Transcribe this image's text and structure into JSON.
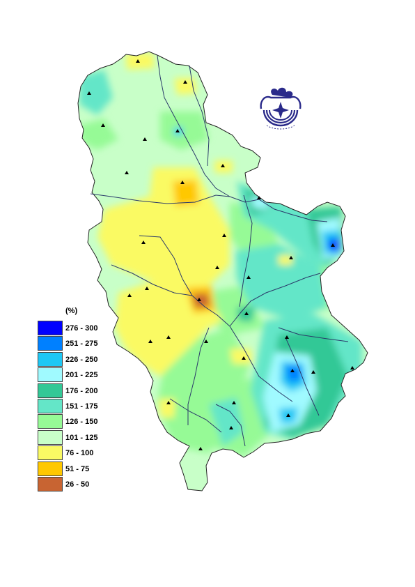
{
  "legend": {
    "title": "(%)",
    "classes": [
      {
        "label": "276 - 300",
        "color": "#0000ff"
      },
      {
        "label": "251 - 275",
        "color": "#0080ff"
      },
      {
        "label": "226 - 250",
        "color": "#1ec8f5"
      },
      {
        "label": "201 - 225",
        "color": "#a0faff"
      },
      {
        "label": "176 - 200",
        "color": "#32c896"
      },
      {
        "label": "151 - 175",
        "color": "#64e6c8"
      },
      {
        "label": "126 - 150",
        "color": "#96fa96"
      },
      {
        "label": "101 - 125",
        "color": "#c8ffc8"
      },
      {
        "label": "76 - 100",
        "color": "#fafa64"
      },
      {
        "label": "51 - 75",
        "color": "#ffc800"
      },
      {
        "label": "26 - 50",
        "color": "#c86432"
      }
    ]
  },
  "colors": {
    "border": "#222222",
    "river": "#2a3a6a",
    "station": "#000000",
    "logo": "#2a2a8a"
  }
}
